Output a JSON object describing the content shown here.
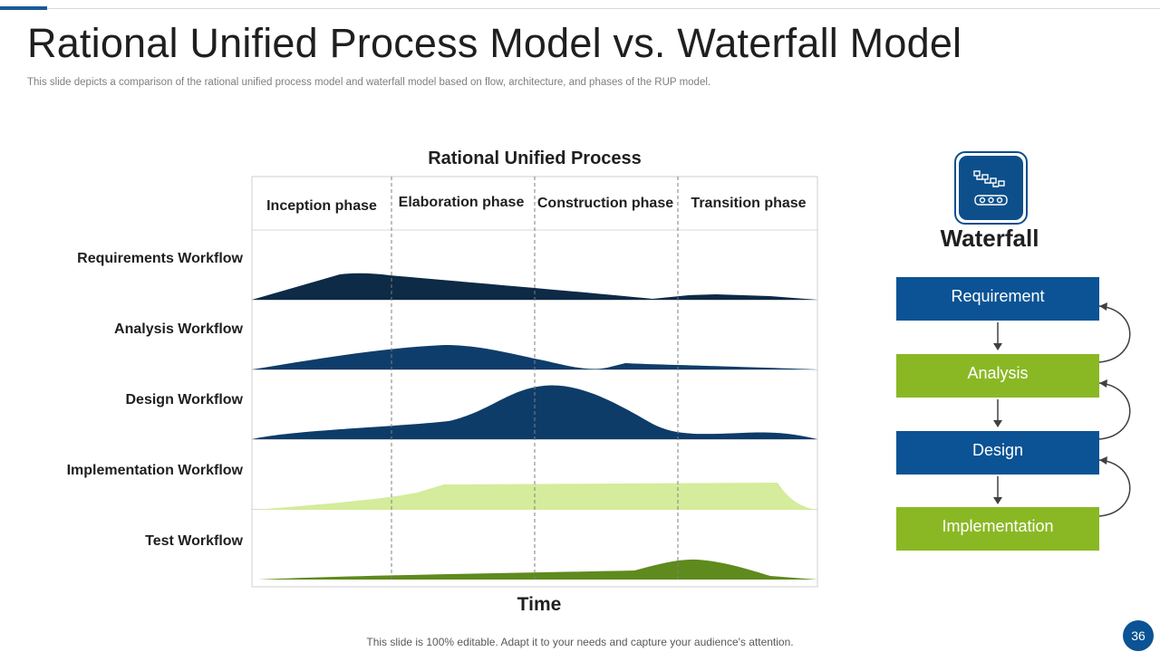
{
  "slide": {
    "title": "Rational Unified Process Model vs. Waterfall Model",
    "subtitle": "This slide depicts a comparison of the rational unified process model and waterfall model based on flow, architecture, and phases of the RUP model.",
    "footer": "This slide is 100% editable. Adapt it to your needs and capture your audience's attention.",
    "page_number": "36"
  },
  "rup": {
    "title": "Rational Unified Process",
    "time_label": "Time",
    "phases": [
      "Inception phase",
      "Elaboration phase",
      "Construction phase",
      "Transition phase"
    ],
    "workflows": [
      {
        "label": "Requirements Workflow",
        "color": "#0d2a46"
      },
      {
        "label": "Analysis Workflow",
        "color": "#0f3d6b"
      },
      {
        "label": "Design Workflow",
        "color": "#0e3c69"
      },
      {
        "label": "Implementation Workflow",
        "color": "#d4ec9b"
      },
      {
        "label": "Test Workflow",
        "color": "#5f8a1e"
      }
    ]
  },
  "waterfall": {
    "icon": "process-flow-icon",
    "title": "Waterfall",
    "steps": [
      {
        "label": "Requirement",
        "color": "#0b5394"
      },
      {
        "label": "Analysis",
        "color": "#8ab824"
      },
      {
        "label": "Design",
        "color": "#0b5394"
      },
      {
        "label": "Implementation",
        "color": "#8ab824"
      }
    ]
  }
}
